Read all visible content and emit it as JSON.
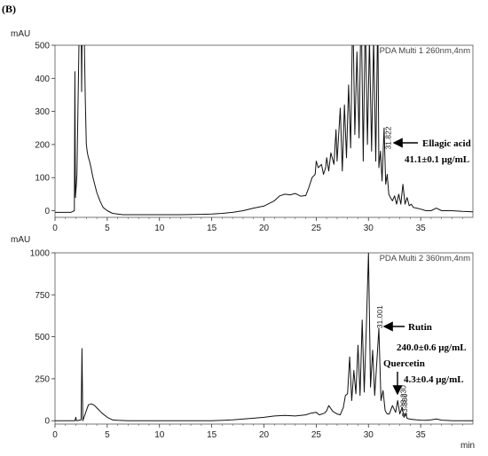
{
  "figure": {
    "panel_label": "(B)"
  },
  "chart_data": [
    {
      "type": "line",
      "title": "PDA Multi 1 260nm,4nm",
      "ylabel": "mAU",
      "xlabel": "",
      "xlim": [
        0,
        40
      ],
      "ylim": [
        -20,
        500
      ],
      "xticks": [
        0,
        5,
        10,
        15,
        20,
        25,
        30,
        35
      ],
      "yticks": [
        0,
        100,
        200,
        300,
        400,
        500
      ],
      "grid": false,
      "series": [
        {
          "x": [
            0,
            1.5,
            1.85,
            1.9,
            1.95,
            2.0,
            2.05,
            2.1,
            2.3,
            2.4,
            2.5,
            2.55,
            2.6,
            2.7,
            2.8,
            2.9,
            3.0,
            3.1,
            3.2,
            3.3,
            3.45,
            3.6,
            3.8,
            4.0,
            4.3,
            4.6,
            5.0,
            5.5,
            6.0,
            6.5,
            7,
            8,
            10,
            12,
            14,
            15,
            16,
            17,
            18,
            19,
            20,
            21,
            21.5,
            22,
            22.5,
            23,
            23.5,
            24,
            24.3,
            24.6,
            24.9,
            25.0,
            25.2,
            25.5,
            25.7,
            25.9,
            26.0,
            26.2,
            26.4,
            26.7,
            26.9,
            27.0,
            27.3,
            27.5,
            27.7,
            27.9,
            28.1,
            28.3,
            28.5,
            28.7,
            28.9,
            29.1,
            29.3,
            29.5,
            29.7,
            29.9,
            30.1,
            30.3,
            30.5,
            30.7,
            30.9,
            31.0,
            31.15,
            31.3,
            31.5,
            31.65,
            31.8,
            31.95,
            32.1,
            32.3,
            32.5,
            32.7,
            32.9,
            33.1,
            33.3,
            33.5,
            33.7,
            33.9,
            34.1,
            34.3,
            34.6,
            35,
            35.5,
            36,
            36.5,
            37,
            38,
            39,
            40
          ],
          "y": [
            -5,
            -5,
            0,
            420,
            40,
            60,
            80,
            110,
            520,
            600,
            600,
            360,
            560,
            600,
            520,
            340,
            200,
            175,
            160,
            150,
            130,
            105,
            80,
            55,
            30,
            10,
            0,
            -8,
            -10,
            -12,
            -12,
            -12,
            -12,
            -12,
            -11,
            -10,
            -8,
            -5,
            0,
            8,
            14,
            30,
            45,
            50,
            48,
            52,
            44,
            46,
            70,
            100,
            110,
            150,
            130,
            140,
            110,
            130,
            160,
            120,
            175,
            140,
            245,
            150,
            310,
            120,
            320,
            160,
            380,
            190,
            620,
            230,
            480,
            220,
            640,
            150,
            600,
            200,
            520,
            180,
            520,
            150,
            600,
            130,
            180,
            90,
            250,
            80,
            110,
            50,
            40,
            30,
            45,
            20,
            50,
            20,
            80,
            20,
            40,
            15,
            20,
            10,
            8,
            5,
            0,
            0,
            8,
            0,
            0,
            -2,
            -3
          ]
        }
      ],
      "annotations": [
        {
          "text": "31.822",
          "x": 31.82,
          "y": 260
        },
        {
          "text": "Ellagic acid",
          "x": 31.9,
          "y": 220
        },
        {
          "text": "41.1±0.1 μg/mL",
          "x": 31.9,
          "y": 220
        }
      ]
    },
    {
      "type": "line",
      "title": "PDA Multi 2 360nm,4nm",
      "ylabel": "mAU",
      "xlabel": "min",
      "xlim": [
        0,
        40
      ],
      "ylim": [
        -20,
        1000
      ],
      "xticks": [
        0,
        5,
        10,
        15,
        20,
        25,
        30,
        35
      ],
      "yticks": [
        0,
        250,
        500,
        750,
        1000
      ],
      "grid": false,
      "series": [
        {
          "x": [
            0,
            1.9,
            2.0,
            2.05,
            2.5,
            2.58,
            2.66,
            3.0,
            3.2,
            3.5,
            3.8,
            4.1,
            4.5,
            5.0,
            5.5,
            6.0,
            7,
            9,
            11,
            13,
            15,
            17,
            19,
            20,
            21,
            22,
            23,
            24,
            24.5,
            25.0,
            25.3,
            25.8,
            26.0,
            26.2,
            26.6,
            27.0,
            27.3,
            27.6,
            27.8,
            28.0,
            28.2,
            28.4,
            28.6,
            28.8,
            29.0,
            29.2,
            29.4,
            29.6,
            29.8,
            30.0,
            30.2,
            30.4,
            30.6,
            30.8,
            31.0,
            31.2,
            31.4,
            31.6,
            31.8,
            32.0,
            32.3,
            32.6,
            32.8,
            33.0,
            33.23,
            33.4,
            33.55,
            33.7,
            33.9,
            34.2,
            34.6,
            35,
            35.5,
            36,
            36.5,
            37,
            38,
            39,
            40
          ],
          "y": [
            0,
            0,
            20,
            0,
            5,
            430,
            0,
            60,
            95,
            100,
            90,
            70,
            45,
            20,
            5,
            2,
            0,
            0,
            0,
            0,
            0,
            5,
            15,
            20,
            28,
            32,
            28,
            35,
            45,
            50,
            35,
            45,
            60,
            90,
            55,
            40,
            35,
            80,
            150,
            160,
            380,
            120,
            300,
            160,
            450,
            150,
            600,
            170,
            560,
            1000,
            200,
            420,
            150,
            350,
            550,
            120,
            180,
            60,
            40,
            40,
            90,
            50,
            120,
            40,
            80,
            20,
            40,
            15,
            10,
            8,
            5,
            3,
            2,
            5,
            10,
            3,
            0,
            0,
            0
          ]
        }
      ],
      "annotations": [
        {
          "text": "31.001",
          "x": 31.0,
          "y": 560
        },
        {
          "text": "33.230",
          "x": 33.23,
          "y": 85
        },
        {
          "text": "33.380",
          "x": 33.38,
          "y": 45
        },
        {
          "text": "Rutin",
          "x": 31.1,
          "y": 530
        },
        {
          "text": "240.0±0.6 μg/mL",
          "x": 31.1,
          "y": 530
        },
        {
          "text": "Quercetin",
          "x": 33.25,
          "y": 150
        },
        {
          "text": "4.3±0.4 μg/mL",
          "x": 33.25,
          "y": 150
        }
      ]
    }
  ]
}
